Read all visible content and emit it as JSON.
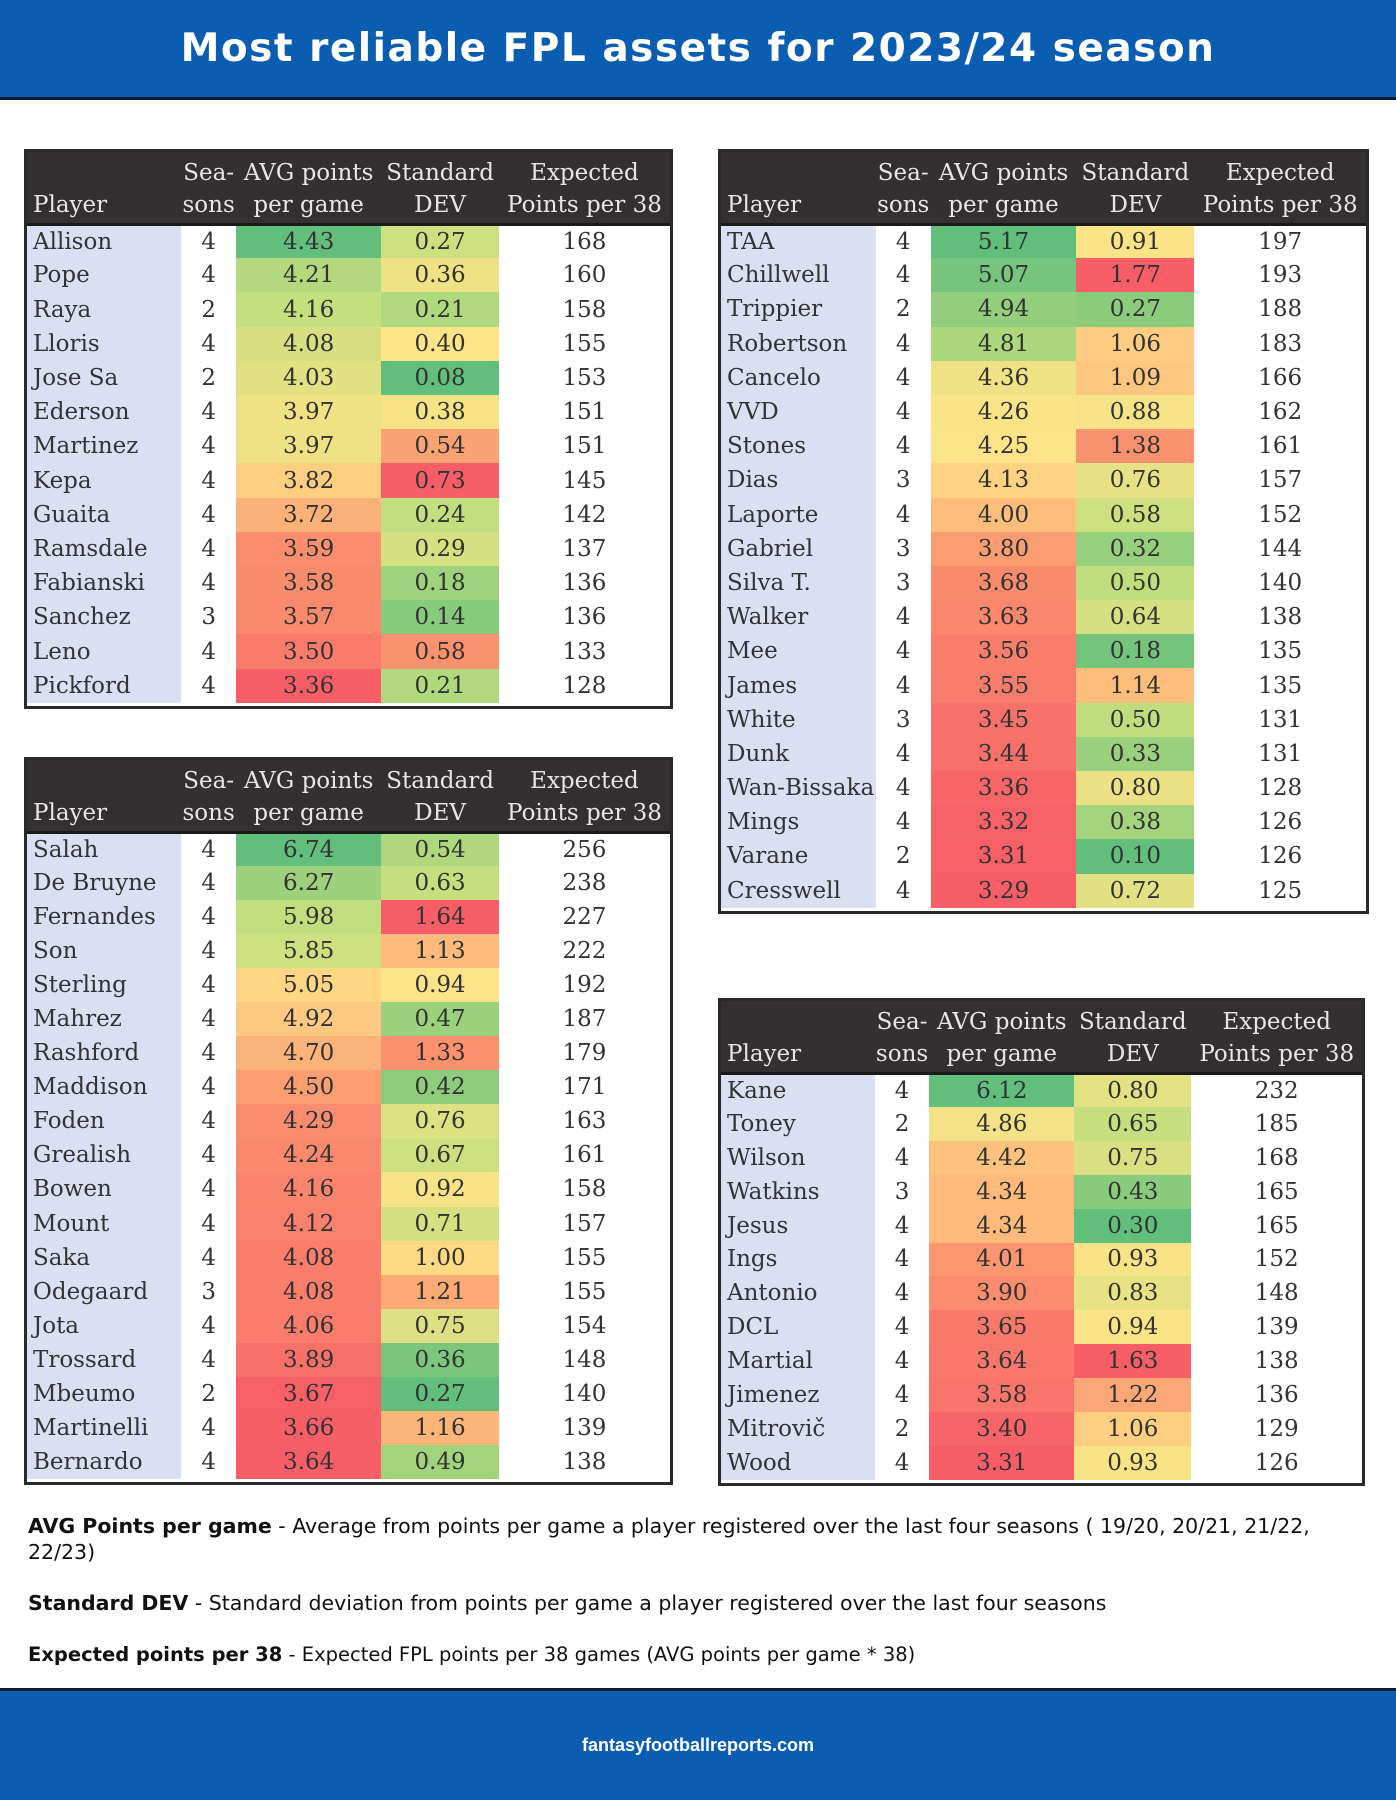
{
  "title": "Most reliable FPL assets for 2023/24 season",
  "columns": {
    "player": "Player",
    "seasons_top": "Sea-",
    "seasons_bottom": "sons",
    "avg_top": "AVG points",
    "avg_bottom": "per game",
    "std_top": "Standard",
    "std_bottom": "DEV",
    "exp_top": "Expected",
    "exp_bottom": "Points per 38"
  },
  "tables": {
    "goalkeepers": {
      "rows": [
        {
          "player": "Allison",
          "seasons": "4",
          "avg": "4.43",
          "std": "0.27",
          "exp": "168"
        },
        {
          "player": "Pope",
          "seasons": "4",
          "avg": "4.21",
          "std": "0.36",
          "exp": "160"
        },
        {
          "player": "Raya",
          "seasons": "2",
          "avg": "4.16",
          "std": "0.21",
          "exp": "158"
        },
        {
          "player": "Lloris",
          "seasons": "4",
          "avg": "4.08",
          "std": "0.40",
          "exp": "155"
        },
        {
          "player": "Jose Sa",
          "seasons": "2",
          "avg": "4.03",
          "std": "0.08",
          "exp": "153"
        },
        {
          "player": "Ederson",
          "seasons": "4",
          "avg": "3.97",
          "std": "0.38",
          "exp": "151"
        },
        {
          "player": "Martinez",
          "seasons": "4",
          "avg": "3.97",
          "std": "0.54",
          "exp": "151"
        },
        {
          "player": "Kepa",
          "seasons": "4",
          "avg": "3.82",
          "std": "0.73",
          "exp": "145"
        },
        {
          "player": "Guaita",
          "seasons": "4",
          "avg": "3.72",
          "std": "0.24",
          "exp": "142"
        },
        {
          "player": "Ramsdale",
          "seasons": "4",
          "avg": "3.59",
          "std": "0.29",
          "exp": "137"
        },
        {
          "player": "Fabianski",
          "seasons": "4",
          "avg": "3.58",
          "std": "0.18",
          "exp": "136"
        },
        {
          "player": "Sanchez",
          "seasons": "3",
          "avg": "3.57",
          "std": "0.14",
          "exp": "136"
        },
        {
          "player": "Leno",
          "seasons": "4",
          "avg": "3.50",
          "std": "0.58",
          "exp": "133"
        },
        {
          "player": "Pickford",
          "seasons": "4",
          "avg": "3.36",
          "std": "0.21",
          "exp": "128"
        }
      ]
    },
    "defenders": {
      "rows": [
        {
          "player": "TAA",
          "seasons": "4",
          "avg": "5.17",
          "std": "0.91",
          "exp": "197"
        },
        {
          "player": "Chillwell",
          "seasons": "4",
          "avg": "5.07",
          "std": "1.77",
          "exp": "193"
        },
        {
          "player": "Trippier",
          "seasons": "2",
          "avg": "4.94",
          "std": "0.27",
          "exp": "188"
        },
        {
          "player": "Robertson",
          "seasons": "4",
          "avg": "4.81",
          "std": "1.06",
          "exp": "183"
        },
        {
          "player": "Cancelo",
          "seasons": "4",
          "avg": "4.36",
          "std": "1.09",
          "exp": "166"
        },
        {
          "player": "VVD",
          "seasons": "4",
          "avg": "4.26",
          "std": "0.88",
          "exp": "162"
        },
        {
          "player": "Stones",
          "seasons": "4",
          "avg": "4.25",
          "std": "1.38",
          "exp": "161"
        },
        {
          "player": "Dias",
          "seasons": "3",
          "avg": "4.13",
          "std": "0.76",
          "exp": "157"
        },
        {
          "player": "Laporte",
          "seasons": "4",
          "avg": "4.00",
          "std": "0.58",
          "exp": "152"
        },
        {
          "player": "Gabriel",
          "seasons": "3",
          "avg": "3.80",
          "std": "0.32",
          "exp": "144"
        },
        {
          "player": "Silva T.",
          "seasons": "3",
          "avg": "3.68",
          "std": "0.50",
          "exp": "140"
        },
        {
          "player": "Walker",
          "seasons": "4",
          "avg": "3.63",
          "std": "0.64",
          "exp": "138"
        },
        {
          "player": "Mee",
          "seasons": "4",
          "avg": "3.56",
          "std": "0.18",
          "exp": "135"
        },
        {
          "player": "James",
          "seasons": "4",
          "avg": "3.55",
          "std": "1.14",
          "exp": "135"
        },
        {
          "player": "White",
          "seasons": "3",
          "avg": "3.45",
          "std": "0.50",
          "exp": "131"
        },
        {
          "player": "Dunk",
          "seasons": "4",
          "avg": "3.44",
          "std": "0.33",
          "exp": "131"
        },
        {
          "player": "Wan-Bissaka",
          "seasons": "4",
          "avg": "3.36",
          "std": "0.80",
          "exp": "128"
        },
        {
          "player": "Mings",
          "seasons": "4",
          "avg": "3.32",
          "std": "0.38",
          "exp": "126"
        },
        {
          "player": "Varane",
          "seasons": "2",
          "avg": "3.31",
          "std": "0.10",
          "exp": "126"
        },
        {
          "player": "Cresswell",
          "seasons": "4",
          "avg": "3.29",
          "std": "0.72",
          "exp": "125"
        }
      ]
    },
    "midfielders": {
      "rows": [
        {
          "player": "Salah",
          "seasons": "4",
          "avg": "6.74",
          "std": "0.54",
          "exp": "256"
        },
        {
          "player": "De Bruyne",
          "seasons": "4",
          "avg": "6.27",
          "std": "0.63",
          "exp": "238"
        },
        {
          "player": "Fernandes",
          "seasons": "4",
          "avg": "5.98",
          "std": "1.64",
          "exp": "227"
        },
        {
          "player": "Son",
          "seasons": "4",
          "avg": "5.85",
          "std": "1.13",
          "exp": "222"
        },
        {
          "player": "Sterling",
          "seasons": "4",
          "avg": "5.05",
          "std": "0.94",
          "exp": "192"
        },
        {
          "player": "Mahrez",
          "seasons": "4",
          "avg": "4.92",
          "std": "0.47",
          "exp": "187"
        },
        {
          "player": "Rashford",
          "seasons": "4",
          "avg": "4.70",
          "std": "1.33",
          "exp": "179"
        },
        {
          "player": "Maddison",
          "seasons": "4",
          "avg": "4.50",
          "std": "0.42",
          "exp": "171"
        },
        {
          "player": "Foden",
          "seasons": "4",
          "avg": "4.29",
          "std": "0.76",
          "exp": "163"
        },
        {
          "player": "Grealish",
          "seasons": "4",
          "avg": "4.24",
          "std": "0.67",
          "exp": "161"
        },
        {
          "player": "Bowen",
          "seasons": "4",
          "avg": "4.16",
          "std": "0.92",
          "exp": "158"
        },
        {
          "player": "Mount",
          "seasons": "4",
          "avg": "4.12",
          "std": "0.71",
          "exp": "157"
        },
        {
          "player": "Saka",
          "seasons": "4",
          "avg": "4.08",
          "std": "1.00",
          "exp": "155"
        },
        {
          "player": "Odegaard",
          "seasons": "3",
          "avg": "4.08",
          "std": "1.21",
          "exp": "155"
        },
        {
          "player": "Jota",
          "seasons": "4",
          "avg": "4.06",
          "std": "0.75",
          "exp": "154"
        },
        {
          "player": "Trossard",
          "seasons": "4",
          "avg": "3.89",
          "std": "0.36",
          "exp": "148"
        },
        {
          "player": "Mbeumo",
          "seasons": "2",
          "avg": "3.67",
          "std": "0.27",
          "exp": "140"
        },
        {
          "player": "Martinelli",
          "seasons": "4",
          "avg": "3.66",
          "std": "1.16",
          "exp": "139"
        },
        {
          "player": "Bernardo",
          "seasons": "4",
          "avg": "3.64",
          "std": "0.49",
          "exp": "138"
        }
      ]
    },
    "forwards": {
      "rows": [
        {
          "player": "Kane",
          "seasons": "4",
          "avg": "6.12",
          "std": "0.80",
          "exp": "232"
        },
        {
          "player": "Toney",
          "seasons": "2",
          "avg": "4.86",
          "std": "0.65",
          "exp": "185"
        },
        {
          "player": "Wilson",
          "seasons": "4",
          "avg": "4.42",
          "std": "0.75",
          "exp": "168"
        },
        {
          "player": "Watkins",
          "seasons": "3",
          "avg": "4.34",
          "std": "0.43",
          "exp": "165"
        },
        {
          "player": "Jesus",
          "seasons": "4",
          "avg": "4.34",
          "std": "0.30",
          "exp": "165"
        },
        {
          "player": "Ings",
          "seasons": "4",
          "avg": "4.01",
          "std": "0.93",
          "exp": "152"
        },
        {
          "player": "Antonio",
          "seasons": "4",
          "avg": "3.90",
          "std": "0.83",
          "exp": "148"
        },
        {
          "player": "DCL",
          "seasons": "4",
          "avg": "3.65",
          "std": "0.94",
          "exp": "139"
        },
        {
          "player": "Martial",
          "seasons": "4",
          "avg": "3.64",
          "std": "1.63",
          "exp": "138"
        },
        {
          "player": "Jimenez",
          "seasons": "4",
          "avg": "3.58",
          "std": "1.22",
          "exp": "136"
        },
        {
          "player": "Mitrovič",
          "seasons": "2",
          "avg": "3.40",
          "std": "1.06",
          "exp": "129"
        },
        {
          "player": "Wood",
          "seasons": "4",
          "avg": "3.31",
          "std": "0.93",
          "exp": "126"
        }
      ]
    }
  },
  "notes": {
    "avg_term": "AVG Points per game",
    "avg_desc": " - Average from points per game a player registered over the last four seasons ( 19/20, 20/21, 21/22, 22/23)",
    "std_term": "Standard DEV",
    "std_desc": " - Standard deviation from points per game a player registered over the last four seasons",
    "exp_term": "Expected points per 38",
    "exp_desc": " - Expected FPL points per 38 games (AVG points per game * 38)"
  },
  "footer": "fantasyfootballreports.com"
}
